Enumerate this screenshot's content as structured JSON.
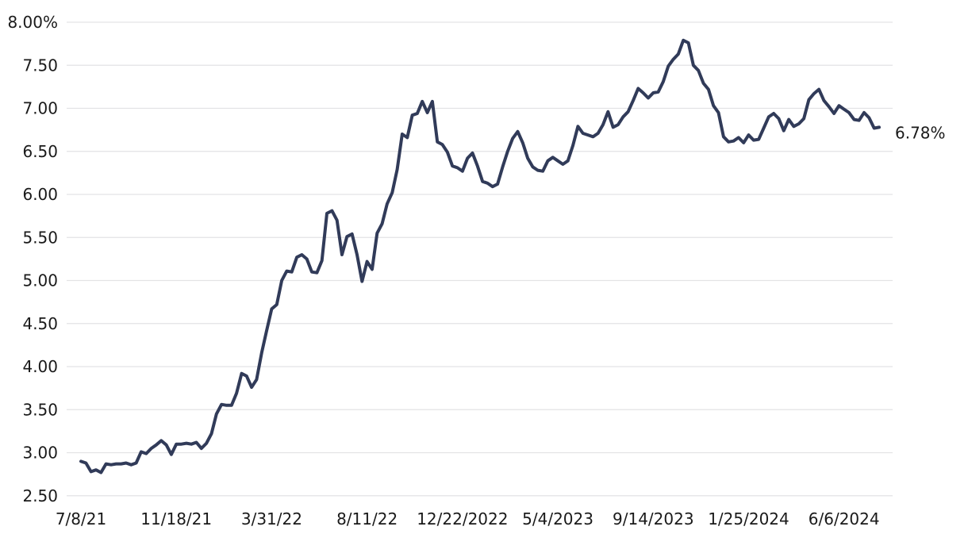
{
  "chart": {
    "line_color": "#313b59",
    "grid_color": "#e3e3e5",
    "text_color": "#1a1a1a",
    "background_color": "#ffffff",
    "end_label": "6.78%"
  },
  "chart_data": {
    "type": "line",
    "title": "",
    "xlabel": "",
    "ylabel": "",
    "grid": "horizontal",
    "legend": "none",
    "ylim": [
      2.5,
      8.0
    ],
    "y_tick_values": [
      8.0,
      7.5,
      7.0,
      6.5,
      6.0,
      5.5,
      5.0,
      4.5,
      4.0,
      3.5,
      3.0,
      2.5
    ],
    "y_tick_labels": [
      "8.00%",
      "7.50",
      "7.00",
      "6.50",
      "6.00",
      "5.50",
      "5.00",
      "4.50",
      "4.00",
      "3.50",
      "3.00",
      "2.50"
    ],
    "x_tick_labels": [
      "7/8/21",
      "11/18/21",
      "3/31/22",
      "8/11/22",
      "12/22/2022",
      "5/4/2023",
      "9/14/2023",
      "1/25/2024",
      "6/6/2024"
    ],
    "x_tick_indices": [
      0,
      19,
      38,
      57,
      76,
      95,
      114,
      133,
      152
    ],
    "end_label": "6.78%",
    "x_dates": [
      "7/8/21",
      "7/15/21",
      "7/22/21",
      "7/29/21",
      "8/5/21",
      "8/12/21",
      "8/19/21",
      "8/26/21",
      "9/2/21",
      "9/9/21",
      "9/16/21",
      "9/23/21",
      "9/30/21",
      "10/7/21",
      "10/14/21",
      "10/21/21",
      "10/28/21",
      "11/4/21",
      "11/10/21",
      "11/18/21",
      "11/24/21",
      "12/2/21",
      "12/9/21",
      "12/16/21",
      "12/23/21",
      "12/30/21",
      "1/6/22",
      "1/13/22",
      "1/20/22",
      "1/27/22",
      "2/3/22",
      "2/10/22",
      "2/17/22",
      "2/24/22",
      "3/3/22",
      "3/10/22",
      "3/17/22",
      "3/24/22",
      "3/31/22",
      "4/7/22",
      "4/14/22",
      "4/21/22",
      "4/28/22",
      "5/5/22",
      "5/12/22",
      "5/19/22",
      "5/26/22",
      "6/2/22",
      "6/9/22",
      "6/16/22",
      "6/23/22",
      "6/30/22",
      "7/7/22",
      "7/14/22",
      "7/21/22",
      "7/28/22",
      "8/4/22",
      "8/11/22",
      "8/18/22",
      "8/25/22",
      "9/1/22",
      "9/8/22",
      "9/15/22",
      "9/22/22",
      "9/29/22",
      "10/6/22",
      "10/13/22",
      "10/20/22",
      "10/27/22",
      "11/3/22",
      "11/10/22",
      "11/17/22",
      "11/23/22",
      "12/1/22",
      "12/8/22",
      "12/15/22",
      "12/22/22",
      "12/29/22",
      "1/5/23",
      "1/12/23",
      "1/19/23",
      "1/26/23",
      "2/2/23",
      "2/9/23",
      "2/16/23",
      "2/23/23",
      "3/2/23",
      "3/9/23",
      "3/16/23",
      "3/23/23",
      "3/30/23",
      "4/6/23",
      "4/13/23",
      "4/20/23",
      "4/27/23",
      "5/4/23",
      "5/11/23",
      "5/18/23",
      "5/25/23",
      "6/1/23",
      "6/8/23",
      "6/15/23",
      "6/22/23",
      "6/29/23",
      "7/6/23",
      "7/13/23",
      "7/20/23",
      "7/27/23",
      "8/3/23",
      "8/10/23",
      "8/17/23",
      "8/24/23",
      "8/31/23",
      "9/7/23",
      "9/14/23",
      "9/21/23",
      "9/28/23",
      "10/5/23",
      "10/12/23",
      "10/19/23",
      "10/26/23",
      "11/2/23",
      "11/9/23",
      "11/16/23",
      "11/22/23",
      "11/30/23",
      "12/7/23",
      "12/14/23",
      "12/21/23",
      "12/28/23",
      "1/4/24",
      "1/11/24",
      "1/18/24",
      "1/25/24",
      "2/1/24",
      "2/8/24",
      "2/15/24",
      "2/22/24",
      "2/29/24",
      "3/7/24",
      "3/14/24",
      "3/21/24",
      "3/28/24",
      "4/4/24",
      "4/11/24",
      "4/18/24",
      "4/25/24",
      "5/2/24",
      "5/9/24",
      "5/16/24",
      "5/23/24",
      "5/30/24",
      "6/6/24",
      "6/13/24",
      "6/20/24",
      "6/27/24",
      "7/3/24",
      "7/11/24",
      "7/18/24",
      "7/25/24"
    ],
    "values": [
      2.9,
      2.88,
      2.78,
      2.8,
      2.77,
      2.87,
      2.86,
      2.87,
      2.87,
      2.88,
      2.86,
      2.88,
      3.01,
      2.99,
      3.05,
      3.09,
      3.14,
      3.09,
      2.98,
      3.1,
      3.1,
      3.11,
      3.1,
      3.12,
      3.05,
      3.11,
      3.22,
      3.45,
      3.56,
      3.55,
      3.55,
      3.69,
      3.92,
      3.89,
      3.76,
      3.85,
      4.16,
      4.42,
      4.67,
      4.72,
      5.0,
      5.11,
      5.1,
      5.27,
      5.3,
      5.25,
      5.1,
      5.09,
      5.23,
      5.78,
      5.81,
      5.7,
      5.3,
      5.51,
      5.54,
      5.3,
      4.99,
      5.22,
      5.13,
      5.55,
      5.66,
      5.89,
      6.02,
      6.29,
      6.7,
      6.66,
      6.92,
      6.94,
      7.08,
      6.95,
      7.08,
      6.61,
      6.58,
      6.49,
      6.33,
      6.31,
      6.27,
      6.42,
      6.48,
      6.33,
      6.15,
      6.13,
      6.09,
      6.12,
      6.32,
      6.5,
      6.65,
      6.73,
      6.6,
      6.42,
      6.32,
      6.28,
      6.27,
      6.39,
      6.43,
      6.39,
      6.35,
      6.39,
      6.57,
      6.79,
      6.71,
      6.69,
      6.67,
      6.71,
      6.81,
      6.96,
      6.78,
      6.81,
      6.9,
      6.96,
      7.09,
      7.23,
      7.18,
      7.12,
      7.18,
      7.19,
      7.31,
      7.49,
      7.57,
      7.63,
      7.79,
      7.76,
      7.5,
      7.44,
      7.29,
      7.22,
      7.03,
      6.95,
      6.67,
      6.61,
      6.62,
      6.66,
      6.6,
      6.69,
      6.63,
      6.64,
      6.77,
      6.9,
      6.94,
      6.88,
      6.74,
      6.87,
      6.79,
      6.82,
      6.88,
      7.1,
      7.17,
      7.22,
      7.09,
      7.02,
      6.94,
      7.03,
      6.99,
      6.95,
      6.87,
      6.86,
      6.95,
      6.89,
      6.77,
      6.78
    ]
  }
}
